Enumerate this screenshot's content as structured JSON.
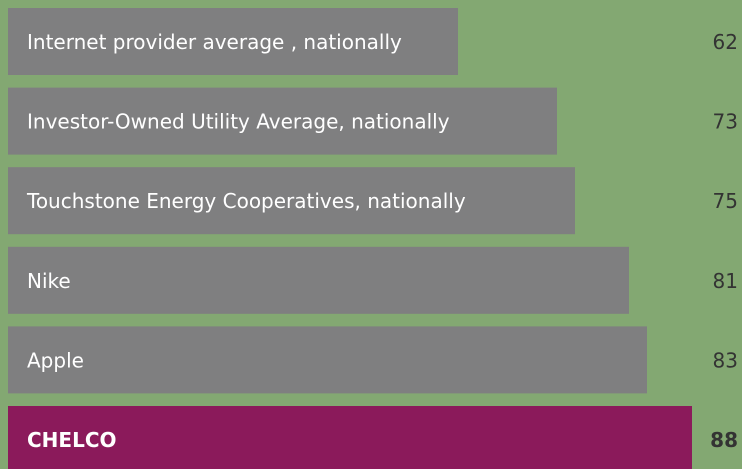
{
  "chart_data": {
    "type": "bar",
    "orientation": "horizontal",
    "categories": [
      "Internet provider average , nationally",
      "Investor-Owned Utility Average, nationally",
      "Touchstone Energy Cooperatives, nationally",
      "Nike",
      "Apple",
      "CHELCO"
    ],
    "values": [
      62,
      73,
      75,
      81,
      83,
      88
    ],
    "colors": [
      "#7f7f80",
      "#7f7f80",
      "#7f7f80",
      "#7f7f80",
      "#7f7f80",
      "#8b1a5b"
    ],
    "background": "#83a872",
    "xlim": [
      12,
      90
    ]
  }
}
